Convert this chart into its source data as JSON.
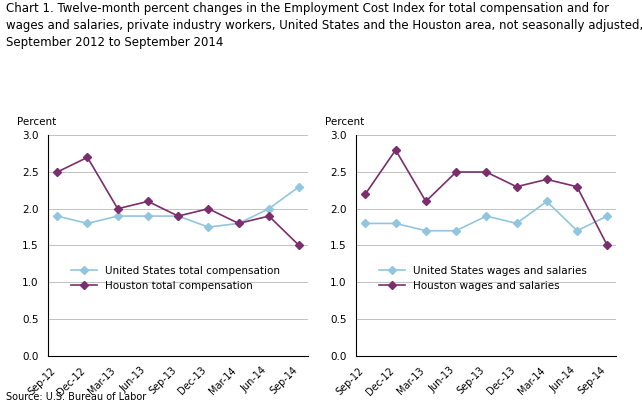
{
  "title_line1": "Chart 1. Twelve-month percent changes in the Employment Cost Index for total compensation and for",
  "title_line2": "wages and salaries, private industry workers, United States and the Houston area, not seasonally adjusted,",
  "title_line3": "September 2012 to September 2014",
  "x_labels": [
    "Sep-12",
    "Dec-12",
    "Mar-13",
    "Jun-13",
    "Sep-13",
    "Dec-13",
    "Mar-14",
    "Jun-14",
    "Sep-14"
  ],
  "left_chart": {
    "ylabel": "Percent",
    "us_total_comp": [
      1.9,
      1.8,
      1.9,
      1.9,
      1.9,
      1.75,
      1.8,
      2.0,
      2.3
    ],
    "houston_total_comp": [
      2.5,
      2.7,
      2.0,
      2.1,
      1.9,
      2.0,
      1.8,
      1.9,
      1.5
    ],
    "legend1": "United States total compensation",
    "legend2": "Houston total compensation"
  },
  "right_chart": {
    "ylabel": "Percent",
    "us_wages_salaries": [
      1.8,
      1.8,
      1.7,
      1.7,
      1.9,
      1.8,
      2.1,
      1.7,
      1.9
    ],
    "houston_wages_salaries": [
      2.2,
      2.8,
      2.1,
      2.5,
      2.5,
      2.3,
      2.4,
      2.3,
      1.5
    ],
    "legend1": "United States wages and salaries",
    "legend2": "Houston wages and salaries"
  },
  "ylim": [
    0.0,
    3.0
  ],
  "yticks": [
    0.0,
    0.5,
    1.0,
    1.5,
    2.0,
    2.5,
    3.0
  ],
  "us_color": "#92C5DE",
  "houston_color": "#7B2D6E",
  "source": "Source: U.S. Bureau of Labor",
  "background_color": "#ffffff",
  "title_fontsize": 8.5,
  "axis_fontsize": 7.5,
  "legend_fontsize": 7.5
}
